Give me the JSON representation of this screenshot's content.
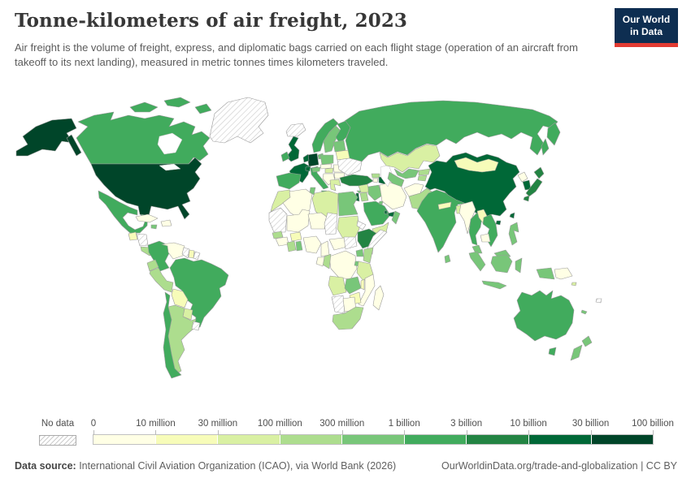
{
  "header": {
    "title": "Tonne-kilometers of air freight, 2023",
    "subtitle": "Air freight is the volume of freight, express, and diplomatic bags carried on each flight stage (operation of an aircraft from takeoff to its next landing), measured in metric tonnes times kilometers traveled.",
    "logo_line1": "Our World",
    "logo_line2": "in Data",
    "logo_bg": "#0e2e51",
    "logo_accent": "#e23b32"
  },
  "legend": {
    "no_data_label": "No data",
    "tick_labels": [
      "0",
      "10 million",
      "30 million",
      "100 million",
      "300 million",
      "1 billion",
      "3 billion",
      "10 billion",
      "30 billion",
      "100 billion"
    ],
    "colors": [
      "#ffffe5",
      "#f7fcb9",
      "#d9f0a3",
      "#addd8e",
      "#78c679",
      "#41ab5d",
      "#238443",
      "#006837",
      "#004529"
    ]
  },
  "footer": {
    "source_bold": "Data source:",
    "source_rest": " International Civil Aviation Organization (ICAO), via World Bank (2026)",
    "credit": "OurWorldinData.org/trade-and-globalization | CC BY"
  },
  "chart_data": {
    "type": "choropleth",
    "title": "Tonne-kilometers of air freight, 2023",
    "unit": "metric tonnes times kilometers traveled",
    "legend_position": "bottom",
    "scale_type": "log-binned",
    "bin_edges": [
      "0",
      "10 million",
      "30 million",
      "100 million",
      "300 million",
      "1 billion",
      "3 billion",
      "10 billion",
      "30 billion",
      "100 billion"
    ],
    "bins": [
      {
        "range": "30–100 billion",
        "color": "#004529",
        "countries": [
          "United States",
          "Germany"
        ]
      },
      {
        "range": "10–30 billion",
        "color": "#006837",
        "countries": [
          "China",
          "United Kingdom",
          "France",
          "South Korea",
          "United Arab Emirates",
          "Qatar",
          "Taiwan",
          "Switzerland",
          "Netherlands",
          "Belgium",
          "Israel",
          "Azerbaijan"
        ]
      },
      {
        "range": "3–10 billion",
        "color": "#238443",
        "countries": [
          "Japan",
          "Turkey",
          "Ethiopia"
        ]
      },
      {
        "range": "1–3 billion",
        "color": "#41ab5d",
        "countries": [
          "Canada",
          "Mexico",
          "Brazil",
          "Colombia",
          "Chile",
          "Russia",
          "India",
          "Australia",
          "Spain",
          "Portugal",
          "Italy",
          "Norway",
          "Finland",
          "Ireland",
          "Saudi Arabia",
          "Thailand",
          "Vietnam"
        ]
      },
      {
        "range": "300 million–1 billion",
        "color": "#78c679",
        "countries": [
          "Sweden",
          "Denmark",
          "Poland",
          "Austria",
          "Egypt",
          "Tunisia",
          "Iraq",
          "Kuwait",
          "Oman",
          "Uzbekistan",
          "Turkmenistan",
          "Sri Lanka",
          "Philippines",
          "Malaysia",
          "Indonesia",
          "New Zealand",
          "Zambia",
          "Uganda",
          "Rwanda",
          "Ghana",
          "Jamaica",
          "Baltic states",
          "Cyprus",
          "New Caledonia"
        ]
      },
      {
        "range": "100–300 million",
        "color": "#addd8e",
        "countries": [
          "Peru",
          "Ecuador",
          "Argentina",
          "Kenya",
          "South Africa",
          "Pakistan",
          "Kyrgyzstan",
          "Tajikistan",
          "Georgia",
          "Jordan",
          "Senegal",
          "Cote d'Ivoire",
          "Republic of Congo",
          "Costa Rica",
          "Panama"
        ]
      },
      {
        "range": "30–100 million",
        "color": "#d9f0a3",
        "countries": [
          "Morocco",
          "Libya",
          "Sudan",
          "Tanzania",
          "Angola",
          "Kazakhstan",
          "Paraguay",
          "Greece",
          "Hungary",
          "Syria",
          "Yemen",
          "Bangladesh",
          "Solomon Islands"
        ]
      },
      {
        "range": "10–30 million",
        "color": "#f7fcb9",
        "countries": [
          "Bolivia",
          "Mongolia",
          "Nepal",
          "Guatemala",
          "Suriname",
          "Zimbabwe",
          "Malawi",
          "Belarus",
          "Burkina Faso",
          "Laos"
        ]
      },
      {
        "range": "0–10 million",
        "color": "#ffffe5",
        "countries": [
          "Venezuela",
          "Algeria",
          "Iran",
          "Democratic Republic of Congo",
          "Madagascar",
          "Mozambique",
          "Myanmar",
          "Cambodia",
          "Papua New Guinea",
          "North Korea",
          "Afghanistan",
          "Romania",
          "Bulgaria",
          "Serbia",
          "Czechia",
          "Cuba",
          "Dominican Republic",
          "Mali",
          "Niger",
          "Nigeria",
          "Cameroon",
          "Central African Republic",
          "Gabon",
          "Botswana",
          "Armenia",
          "Guinea"
        ]
      },
      {
        "range": "No data",
        "color": "hatched",
        "countries": [
          "Greenland",
          "Iceland",
          "Ukraine",
          "Chad",
          "South Sudan",
          "Somalia",
          "Eritrea",
          "Namibia",
          "Mauritania",
          "Western Sahara",
          "Uruguay",
          "Guyana",
          "French Guiana",
          "Honduras",
          "Nicaragua",
          "Fiji"
        ]
      }
    ]
  },
  "map": {
    "fills": {
      "us": "#004529",
      "ca": "#41ab5d",
      "gl": "nodata",
      "is": "nodata",
      "mx": "#41ab5d",
      "gt": "#f7fcb9",
      "hn": "nodata",
      "cr": "#addd8e",
      "cu": "#ffffe5",
      "hisp": "#ffffe5",
      "jm": "#78c679",
      "co": "#41ab5d",
      "ve": "#ffffe5",
      "gy": "nodata",
      "sr": "#f7fcb9",
      "gf": "nodata",
      "br": "#41ab5d",
      "ec": "#addd8e",
      "pe": "#addd8e",
      "bo": "#f7fcb9",
      "py": "#d9f0a3",
      "cl": "#41ab5d",
      "ar": "#addd8e",
      "uy": "nodata",
      "no": "#41ab5d",
      "se": "#78c679",
      "fi": "#41ab5d",
      "dk": "#78c679",
      "uk": "#006837",
      "ie": "#41ab5d",
      "fr": "#006837",
      "de": "#004529",
      "bnl": "#006837",
      "es": "#41ab5d",
      "it": "#41ab5d",
      "ch": "#006837",
      "at": "#78c679",
      "pl": "#78c679",
      "cz": "#ffffe5",
      "hu": "#d9f0a3",
      "balk": "#ffffe5",
      "ro": "#ffffe5",
      "bg": "#ffffe5",
      "gr": "#d9f0a3",
      "balt": "#78c679",
      "by": "#f7fcb9",
      "ua": "nodata",
      "ru": "#41ab5d",
      "tr": "#238443",
      "cy": "#78c679",
      "ge": "#addd8e",
      "am": "#ffffe5",
      "az": "#006837",
      "sy": "#d9f0a3",
      "il": "#006837",
      "jo": "#addd8e",
      "iq": "#78c679",
      "ir": "#ffffe5",
      "sa": "#41ab5d",
      "kw": "#78c679",
      "qa": "#006837",
      "ae": "#006837",
      "om": "#78c679",
      "ye": "#d9f0a3",
      "ma": "#d9f0a3",
      "mr": "nodata",
      "dz": "#ffffe5",
      "tn": "#78c679",
      "ly": "#d9f0a3",
      "eg": "#78c679",
      "ml": "#ffffe5",
      "ne": "#ffffe5",
      "td": "nodata",
      "sd": "#d9f0a3",
      "er": "nodata",
      "sn": "#addd8e",
      "gn": "#ffffe5",
      "ci": "#addd8e",
      "gh": "#78c679",
      "bf": "#f7fcb9",
      "ng": "#ffffe5",
      "cm": "#ffffe5",
      "cf": "#ffffe5",
      "ss": "nodata",
      "et": "#238443",
      "so": "nodata",
      "ug": "#78c679",
      "ke": "#addd8e",
      "cd": "#ffffe5",
      "cg": "#addd8e",
      "ga": "#ffffe5",
      "rw": "#78c679",
      "tz": "#d9f0a3",
      "ao": "#d9f0a3",
      "zm": "#78c679",
      "mw": "#f7fcb9",
      "mz": "#ffffe5",
      "zw": "#f7fcb9",
      "na": "nodata",
      "bw": "#ffffe5",
      "za": "#addd8e",
      "mg": "#ffffe5",
      "kz": "#d9f0a3",
      "uz": "#78c679",
      "tm": "#78c679",
      "kg": "#addd8e",
      "tj": "#addd8e",
      "af": "#ffffe5",
      "pk": "#addd8e",
      "in": "#41ab5d",
      "np": "#f7fcb9",
      "bd": "#d9f0a3",
      "lk": "#78c679",
      "cn": "#006837",
      "mn": "#f7fcb9",
      "kp": "#ffffe5",
      "kr": "#006837",
      "jp": "#238443",
      "tw": "#006837",
      "mm": "#ffffe5",
      "th": "#41ab5d",
      "la": "#f7fcb9",
      "vn": "#41ab5d",
      "kh": "#ffffe5",
      "my": "#78c679",
      "id": "#78c679",
      "png": "#ffffe5",
      "ph": "#78c679",
      "au": "#41ab5d",
      "nz": "#78c679",
      "fj": "nodata",
      "sb": "#d9f0a3",
      "nc": "#78c679"
    }
  }
}
